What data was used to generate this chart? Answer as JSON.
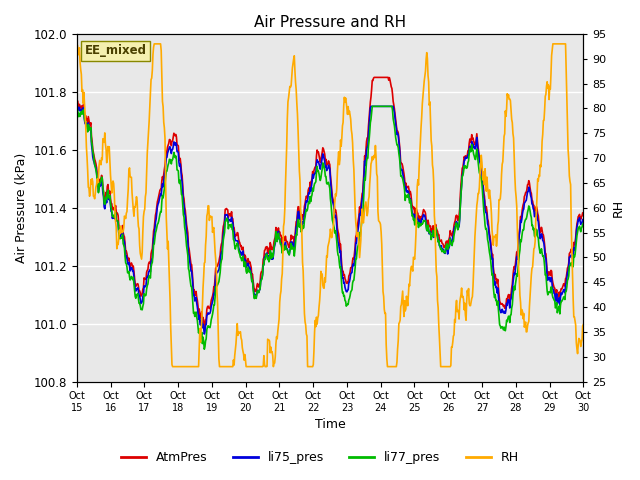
{
  "title": "Air Pressure and RH",
  "xlabel": "Time",
  "ylabel_left": "Air Pressure (kPa)",
  "ylabel_right": "RH",
  "label_box": "EE_mixed",
  "ylim_left": [
    100.8,
    102.0
  ],
  "ylim_right": [
    25,
    95
  ],
  "yticks_left": [
    100.8,
    101.0,
    101.2,
    101.4,
    101.6,
    101.8,
    102.0
  ],
  "yticks_right": [
    25,
    30,
    35,
    40,
    45,
    50,
    55,
    60,
    65,
    70,
    75,
    80,
    85,
    90,
    95
  ],
  "xtick_labels": [
    "Oct 15",
    "Oct 16",
    "Oct 17",
    "Oct 18",
    "Oct 19",
    "Oct 20",
    "Oct 21",
    "Oct 22",
    "Oct 23",
    "Oct 24",
    "Oct 25",
    "Oct 26",
    "Oct 27",
    "Oct 28",
    "Oct 29",
    "Oct 30"
  ],
  "colors": {
    "AtmPres": "#dd0000",
    "li75_pres": "#0000dd",
    "li77_pres": "#00bb00",
    "RH": "#ffaa00"
  },
  "linewidths": {
    "AtmPres": 1.2,
    "li75_pres": 1.2,
    "li77_pres": 1.2,
    "RH": 1.2
  },
  "plot_bg_color": "#e8e8e8",
  "title_fontsize": 11,
  "label_box_facecolor": "#f5f0b0",
  "label_box_edgecolor": "#888800",
  "label_box_textcolor": "#4a4000"
}
